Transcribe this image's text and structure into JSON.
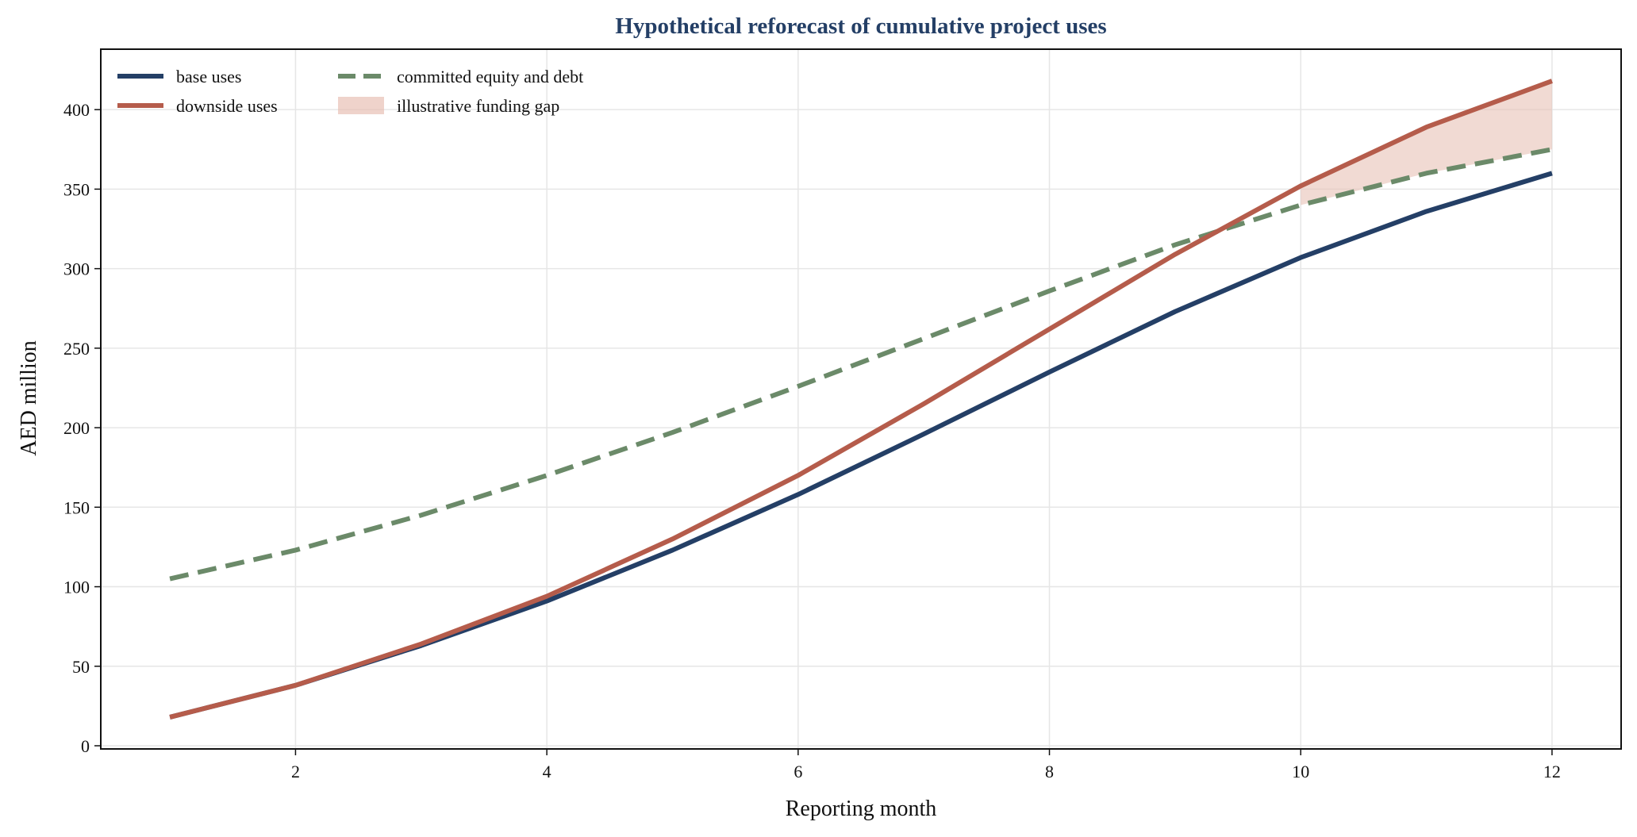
{
  "chart_data": {
    "type": "line",
    "title": "Hypothetical reforecast of cumulative project uses",
    "xlabel": "Reporting month",
    "ylabel": "AED million",
    "x": [
      1,
      2,
      3,
      4,
      5,
      6,
      7,
      8,
      9,
      10,
      11,
      12
    ],
    "xlim": [
      0.45,
      12.55
    ],
    "ylim": [
      -2,
      438
    ],
    "xticks": [
      2,
      4,
      6,
      8,
      10,
      12
    ],
    "yticks": [
      0,
      50,
      100,
      150,
      200,
      250,
      300,
      350,
      400
    ],
    "grid": true,
    "legend_position": "top-left",
    "series": [
      {
        "name": "base uses",
        "style": "solid",
        "color": "#243f66",
        "values": [
          18,
          38,
          63,
          91,
          123,
          158,
          196,
          235,
          273,
          307,
          336,
          360
        ]
      },
      {
        "name": "downside uses",
        "style": "solid",
        "color": "#b55c4b",
        "values": [
          18,
          38,
          64,
          94,
          130,
          170,
          215,
          262,
          309,
          352,
          389,
          418
        ]
      },
      {
        "name": "committed equity and debt",
        "style": "dashed",
        "color": "#6b8a69",
        "values": [
          105,
          123,
          145,
          170,
          197,
          226,
          256,
          286,
          315,
          340,
          360,
          375
        ]
      }
    ],
    "fill_between": {
      "name": "illustrative funding gap",
      "color": "#e8c1b5",
      "upper_series": "downside uses",
      "lower_series": "committed equity and debt",
      "x_from": 10,
      "x_to": 12
    },
    "colors": {
      "title": "#243f66",
      "axis": "#111111",
      "grid": "#e6e6e6"
    }
  }
}
